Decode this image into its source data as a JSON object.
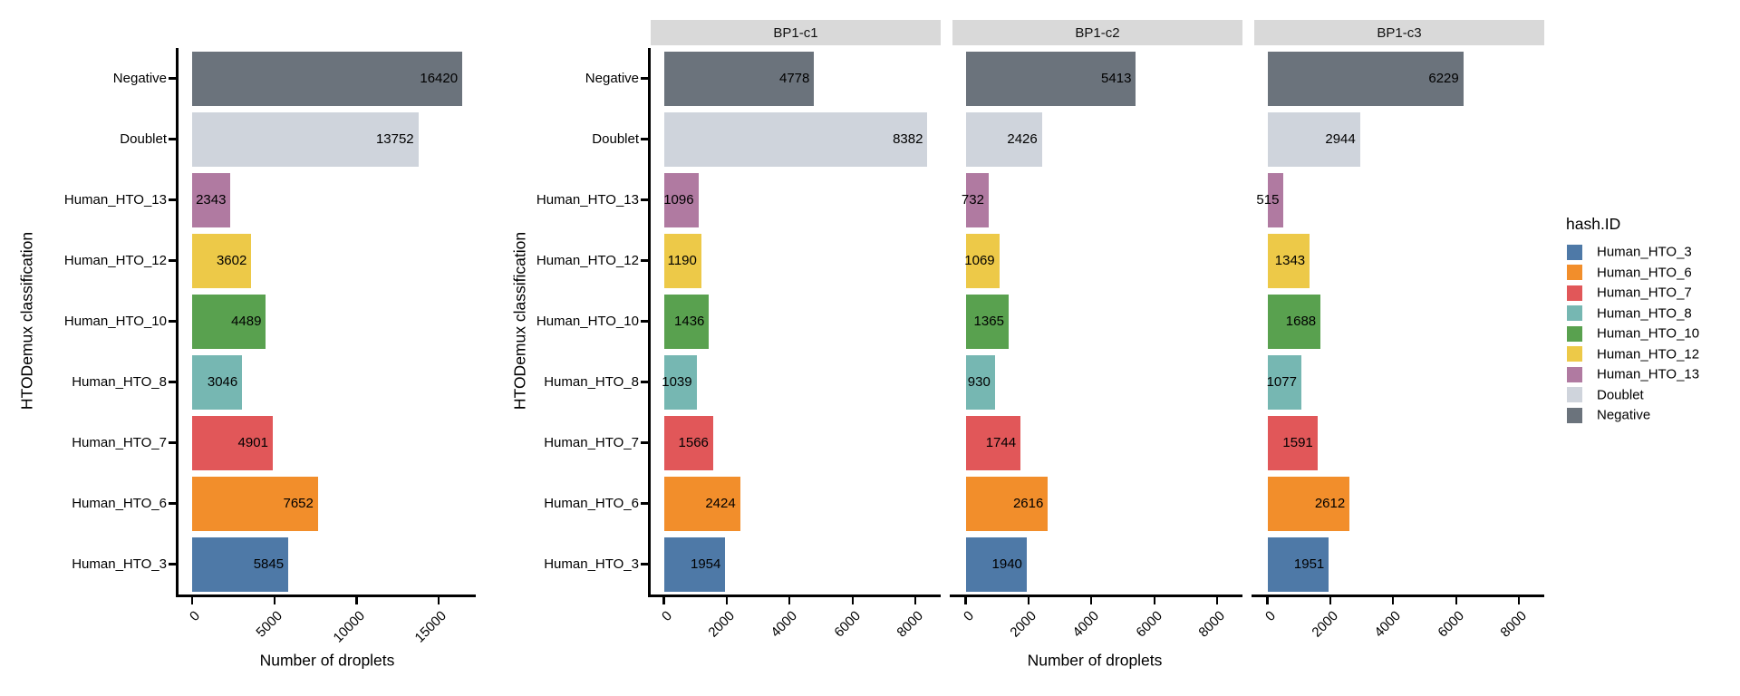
{
  "figure": {
    "background": "#FFFFFF",
    "y_axis_title": "HTODemux classification",
    "x_axis_title": "Number of droplets",
    "categories_top_to_bottom": [
      "Negative",
      "Doublet",
      "Human_HTO_13",
      "Human_HTO_12",
      "Human_HTO_10",
      "Human_HTO_8",
      "Human_HTO_7",
      "Human_HTO_6",
      "Human_HTO_3"
    ],
    "colors": {
      "Human_HTO_3": "#4E79A7",
      "Human_HTO_6": "#F28E2B",
      "Human_HTO_7": "#E15759",
      "Human_HTO_8": "#76B7B2",
      "Human_HTO_10": "#59A14F",
      "Human_HTO_12": "#EDC948",
      "Human_HTO_13": "#B07AA1",
      "Doublet": "#CFD4DC",
      "Negative": "#6B737C"
    }
  },
  "chart_data": [
    {
      "type": "bar",
      "orientation": "horizontal",
      "panel": "overall",
      "ylabel": "HTODemux classification",
      "xlabel": "Number of droplets",
      "categories": [
        "Negative",
        "Doublet",
        "Human_HTO_13",
        "Human_HTO_12",
        "Human_HTO_10",
        "Human_HTO_8",
        "Human_HTO_7",
        "Human_HTO_6",
        "Human_HTO_3"
      ],
      "values": [
        16420,
        13752,
        2343,
        3602,
        4489,
        3046,
        4901,
        7652,
        5845
      ],
      "bar_value_labels": [
        "16420",
        "13752",
        "2343",
        "3602",
        "4489",
        "3046",
        "4901",
        "7652",
        "5845"
      ],
      "x_ticks": [
        0,
        5000,
        10000,
        15000
      ],
      "x_tick_labels": [
        "0",
        "5000",
        "10000",
        "15000"
      ],
      "xlim": [
        0,
        16420
      ],
      "grid": false
    },
    {
      "type": "bar",
      "orientation": "horizontal",
      "panel": "faceted-by-sample",
      "ylabel": "HTODemux classification",
      "xlabel": "Number of droplets",
      "categories": [
        "Negative",
        "Doublet",
        "Human_HTO_13",
        "Human_HTO_12",
        "Human_HTO_10",
        "Human_HTO_8",
        "Human_HTO_7",
        "Human_HTO_6",
        "Human_HTO_3"
      ],
      "series": [
        {
          "name": "BP1-c1",
          "values": [
            4778,
            8382,
            1096,
            1190,
            1436,
            1039,
            1566,
            2424,
            1954
          ]
        },
        {
          "name": "BP1-c2",
          "values": [
            5413,
            2426,
            732,
            1069,
            1365,
            930,
            1744,
            2616,
            1940
          ]
        },
        {
          "name": "BP1-c3",
          "values": [
            6229,
            2944,
            515,
            1343,
            1688,
            1077,
            1591,
            2612,
            1951
          ]
        }
      ],
      "x_ticks": [
        0,
        2000,
        4000,
        6000,
        8000
      ],
      "x_tick_labels": [
        "0",
        "2000",
        "4000",
        "6000",
        "8000"
      ],
      "xlim": [
        0,
        8382
      ],
      "grid": false
    }
  ],
  "legend": {
    "title": "hash.ID",
    "entries": [
      {
        "label": "Human_HTO_3",
        "color": "#4E79A7"
      },
      {
        "label": "Human_HTO_6",
        "color": "#F28E2B"
      },
      {
        "label": "Human_HTO_7",
        "color": "#E15759"
      },
      {
        "label": "Human_HTO_8",
        "color": "#76B7B2"
      },
      {
        "label": "Human_HTO_10",
        "color": "#59A14F"
      },
      {
        "label": "Human_HTO_12",
        "color": "#EDC948"
      },
      {
        "label": "Human_HTO_13",
        "color": "#B07AA1"
      },
      {
        "label": "Doublet",
        "color": "#CFD4DC"
      },
      {
        "label": "Negative",
        "color": "#6B737C"
      }
    ]
  }
}
